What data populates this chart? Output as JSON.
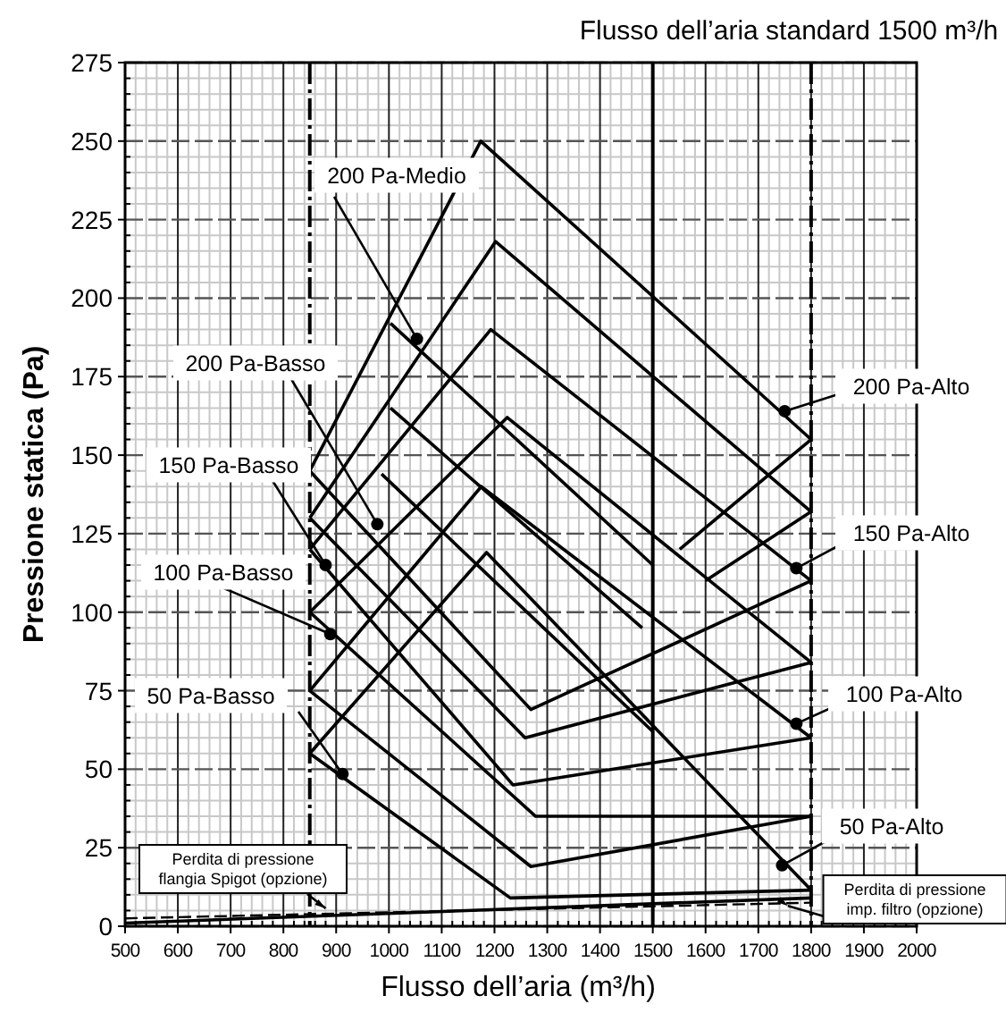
{
  "chart_data": {
    "type": "line",
    "title": "Flusso dell’aria standard 1500 m³/h",
    "xlabel": "Flusso dell’aria (m³/h)",
    "ylabel": "Pressione statica (Pa)",
    "xlim": [
      500,
      2000
    ],
    "ylim": [
      0,
      275
    ],
    "xticks": [
      500,
      600,
      700,
      800,
      900,
      1000,
      1100,
      1200,
      1300,
      1400,
      1500,
      1600,
      1700,
      1800,
      1900,
      2000
    ],
    "yticks": [
      0,
      25,
      50,
      75,
      100,
      125,
      150,
      175,
      200,
      225,
      250,
      275
    ],
    "grid": true,
    "marker": "none",
    "series": [
      {
        "color": "#000000",
        "x": [
          850,
          1174,
          1800
        ],
        "values": [
          145,
          250,
          155
        ]
      },
      {
        "color": "#000000",
        "x": [
          850,
          1202,
          1800
        ],
        "values": [
          130,
          218,
          132
        ]
      },
      {
        "color": "#000000",
        "x": [
          850,
          1193,
          1800
        ],
        "values": [
          120,
          190,
          110
        ]
      },
      {
        "color": "#000000",
        "x": [
          850,
          1224,
          1800
        ],
        "values": [
          100,
          162,
          84
        ]
      },
      {
        "color": "#000000",
        "x": [
          850,
          1175,
          1800
        ],
        "values": [
          75,
          140,
          60
        ]
      },
      {
        "color": "#000000",
        "x": [
          850,
          1185,
          1800
        ],
        "values": [
          55,
          119,
          11.5
        ]
      },
      {
        "color": "#000000",
        "x": [
          850,
          1269,
          1800
        ],
        "values": [
          145,
          69,
          110
        ]
      },
      {
        "color": "#000000",
        "x": [
          850,
          1258,
          1800
        ],
        "values": [
          130,
          60,
          84
        ]
      },
      {
        "color": "#000000",
        "x": [
          850,
          1235,
          1800
        ],
        "values": [
          120,
          45,
          60
        ]
      },
      {
        "color": "#000000",
        "x": [
          850,
          1278,
          1800
        ],
        "values": [
          100,
          35,
          35
        ]
      },
      {
        "color": "#000000",
        "x": [
          850,
          1269,
          1800
        ],
        "values": [
          75,
          19,
          35
        ]
      },
      {
        "color": "#000000",
        "x": [
          850,
          1230,
          1800
        ],
        "values": [
          55,
          9,
          11.5
        ]
      },
      {
        "color": "#000000",
        "x": [
          1003,
          1500
        ],
        "values": [
          192,
          115
        ]
      },
      {
        "color": "#000000",
        "x": [
          1003,
          1480
        ],
        "values": [
          165,
          95
        ]
      },
      {
        "color": "#000000",
        "x": [
          986,
          1500
        ],
        "values": [
          144,
          62
        ]
      },
      {
        "color": "#000000",
        "x": [
          1551,
          1800
        ],
        "values": [
          120,
          155
        ]
      },
      {
        "color": "#000000",
        "x": [
          1600,
          1800
        ],
        "values": [
          110,
          132
        ]
      },
      {
        "color": "#000000",
        "x": [
          500,
          1800
        ],
        "values": [
          1,
          9
        ]
      },
      {
        "color": "#000000",
        "x": [
          500,
          1800
        ],
        "values": [
          2.5,
          7.5
        ],
        "line_style": "dashed"
      }
    ],
    "ref_lines": [
      {
        "axis": "x",
        "value": 850,
        "line_style": "dashed"
      },
      {
        "axis": "x",
        "value": 1500,
        "line_style": "solid"
      },
      {
        "axis": "x",
        "value": 1800,
        "line_style": "dashed"
      }
    ],
    "annotations": [
      {
        "text": "200 Pa-Medio",
        "x": 1053,
        "y": 187
      },
      {
        "text": "200 Pa-Basso",
        "x": 978,
        "y": 128
      },
      {
        "text": "150 Pa-Basso",
        "x": 880,
        "y": 115
      },
      {
        "text": "100 Pa-Basso",
        "x": 889,
        "y": 93
      },
      {
        "text": "50 Pa-Basso",
        "x": 912,
        "y": 48.5
      },
      {
        "text": "200 Pa-Alto",
        "x": 1750,
        "y": 164
      },
      {
        "text": "150 Pa-Alto",
        "x": 1772,
        "y": 114
      },
      {
        "text": "100 Pa-Alto",
        "x": 1772,
        "y": 64.5
      },
      {
        "text": "50 Pa-Alto",
        "x": 1745,
        "y": 19.4
      },
      {
        "text": "Perdita di pressione\nflangia Spigot (opzione)",
        "x": 880,
        "y": 5.7
      },
      {
        "text": "Perdita di pressione\nimp. filtro (opzione)",
        "x": 1756,
        "y": 6.5
      }
    ]
  }
}
